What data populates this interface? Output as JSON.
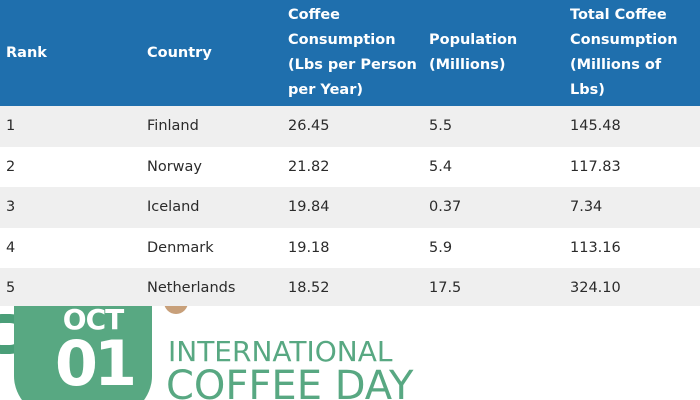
{
  "table": {
    "headers": {
      "rank": "Rank",
      "country": "Country",
      "consumption": [
        "Coffee",
        "Consumption",
        "(Lbs per Person",
        "per Year)"
      ],
      "population": [
        "Population",
        "(Millions)"
      ],
      "total": [
        "Total Coffee",
        "Consumption",
        "(Millions of",
        "Lbs)"
      ]
    },
    "rows": [
      [
        "1",
        "Finland",
        "26.45",
        "5.5",
        "145.48"
      ],
      [
        "2",
        "Norway",
        "21.82",
        "5.4",
        "117.83"
      ],
      [
        "3",
        "Iceland",
        "19.84",
        "0.37",
        "7.34"
      ],
      [
        "4",
        "Denmark",
        "19.18",
        "5.9",
        "113.16"
      ],
      [
        "5",
        "Netherlands",
        "18.52",
        "17.5",
        "324.10"
      ]
    ]
  },
  "banner": {
    "month": "OCT",
    "day": "01",
    "title_line1": "INTERNATIONAL",
    "title_line2": "COFFEE DAY"
  },
  "colors": {
    "header_bg": "#1f6fad",
    "row_alt": "#efefef",
    "green": "#58a882",
    "bean": "#c8a07a"
  }
}
